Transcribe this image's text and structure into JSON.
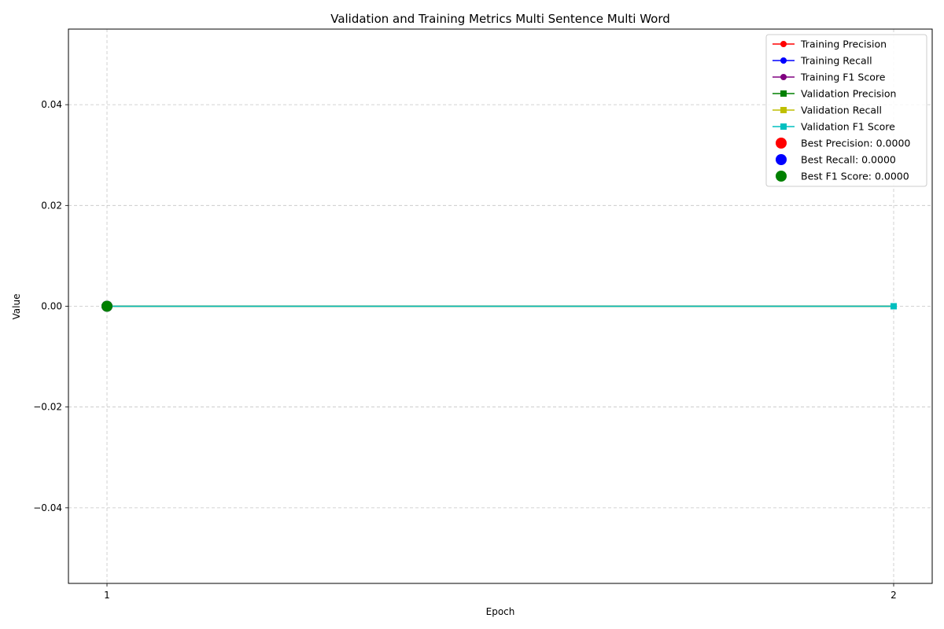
{
  "chart_data": {
    "type": "line",
    "title": "Validation and Training Metrics Multi Sentence Multi Word",
    "xlabel": "Epoch",
    "ylabel": "Value",
    "xlim": [
      0.951,
      2.049
    ],
    "ylim": [
      -0.055,
      0.055
    ],
    "x_ticks": [
      1,
      2
    ],
    "x_tick_labels": [
      "1",
      "2"
    ],
    "y_ticks": [
      -0.04,
      -0.02,
      0.0,
      0.02,
      0.04
    ],
    "y_tick_labels": [
      "−0.04",
      "−0.02",
      "0.00",
      "0.02",
      "0.04"
    ],
    "grid": true,
    "legend_position": "top-right",
    "x": [
      1,
      2
    ],
    "series": [
      {
        "name": "Training Precision",
        "values": [
          0,
          0
        ],
        "color": "#ff0000",
        "marker": "circle"
      },
      {
        "name": "Training Recall",
        "values": [
          0,
          0
        ],
        "color": "#0000ff",
        "marker": "circle"
      },
      {
        "name": "Training F1 Score",
        "values": [
          0,
          0
        ],
        "color": "#800080",
        "marker": "circle"
      },
      {
        "name": "Validation Precision",
        "values": [
          0,
          0
        ],
        "color": "#008000",
        "marker": "square"
      },
      {
        "name": "Validation Recall",
        "values": [
          0,
          0
        ],
        "color": "#bfbf00",
        "marker": "square"
      },
      {
        "name": "Validation F1 Score",
        "values": [
          0,
          0
        ],
        "color": "#00bfbf",
        "marker": "square"
      }
    ],
    "best_points": [
      {
        "name": "Best Precision: 0.0000",
        "x": 1,
        "y": 0,
        "color": "#ff0000"
      },
      {
        "name": "Best Recall: 0.0000",
        "x": 1,
        "y": 0,
        "color": "#0000ff"
      },
      {
        "name": "Best F1 Score: 0.0000",
        "x": 1,
        "y": 0,
        "color": "#008000"
      }
    ]
  }
}
